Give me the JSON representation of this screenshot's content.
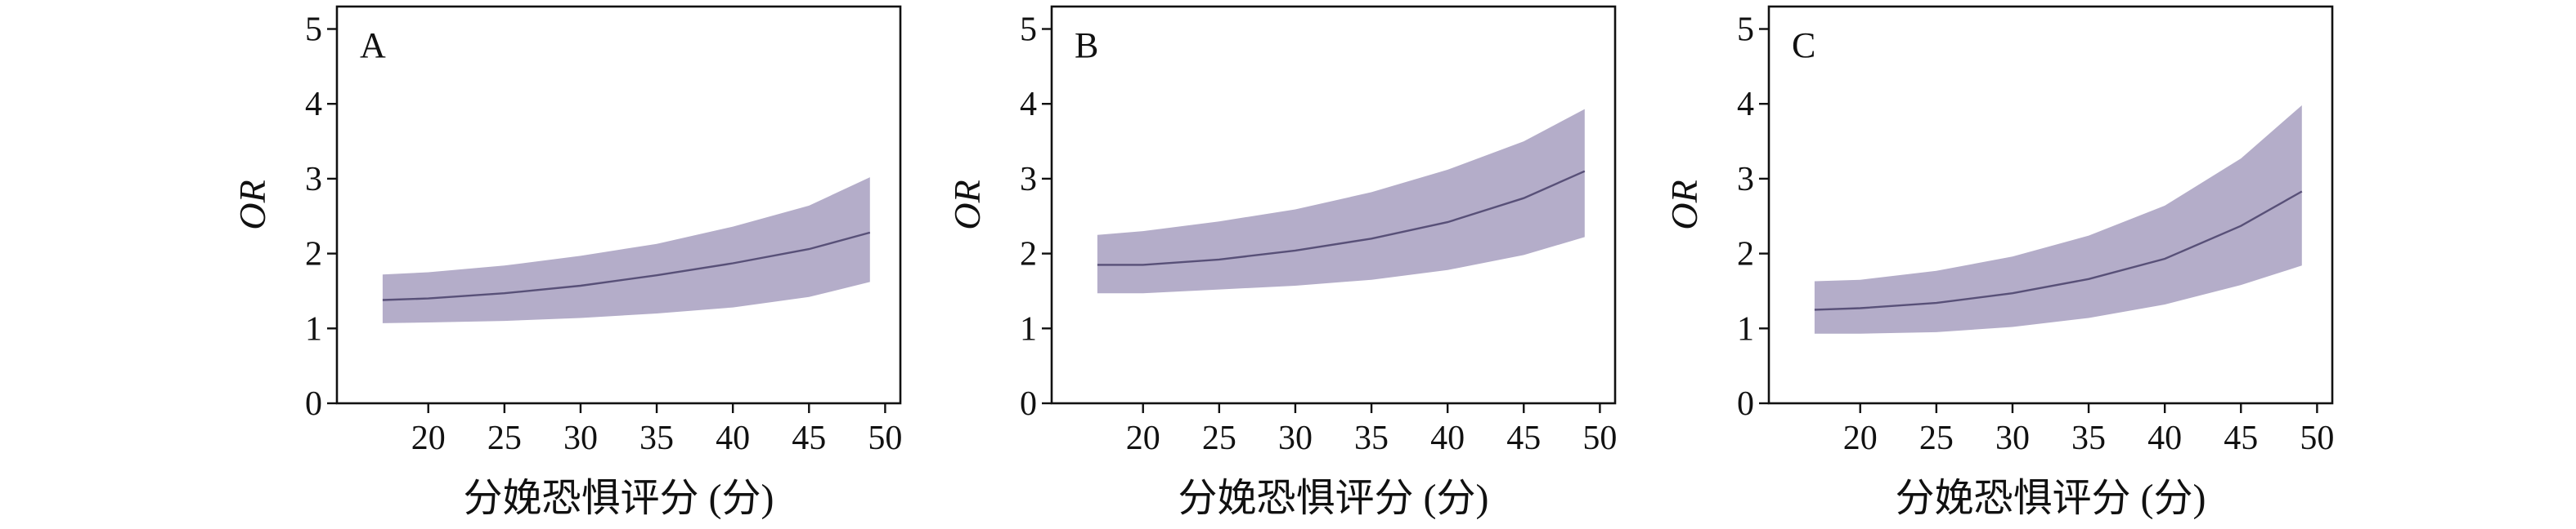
{
  "colors": {
    "band": "#b4adc9",
    "line": "#585078",
    "axis": "#111111",
    "background": "#ffffff"
  },
  "chart_data": [
    {
      "type": "line",
      "panel_label": "A",
      "xlabel": "分娩恐惧评分 (分)",
      "ylabel": "OR",
      "xlim": [
        14,
        51
      ],
      "ylim": [
        0,
        5.3
      ],
      "xticks": [
        "20",
        "25",
        "30",
        "35",
        "40",
        "45",
        "50"
      ],
      "yticks": [
        "0",
        "1",
        "2",
        "3",
        "4",
        "5"
      ],
      "grid": false,
      "series": [
        {
          "x": [
            17,
            20,
            25,
            30,
            35,
            40,
            45,
            49
          ],
          "y": [
            1.38,
            1.4,
            1.47,
            1.57,
            1.71,
            1.87,
            2.06,
            2.28
          ],
          "lower": [
            1.07,
            1.08,
            1.1,
            1.14,
            1.2,
            1.28,
            1.42,
            1.62
          ],
          "upper": [
            1.72,
            1.75,
            1.84,
            1.97,
            2.13,
            2.36,
            2.64,
            3.02
          ]
        }
      ]
    },
    {
      "type": "line",
      "panel_label": "B",
      "xlabel": "分娩恐惧评分 (分)",
      "ylabel": "OR",
      "xlim": [
        14,
        51
      ],
      "ylim": [
        0,
        5.3
      ],
      "xticks": [
        "20",
        "25",
        "30",
        "35",
        "40",
        "45",
        "50"
      ],
      "yticks": [
        "0",
        "1",
        "2",
        "3",
        "4",
        "5"
      ],
      "grid": false,
      "series": [
        {
          "x": [
            17,
            20,
            25,
            30,
            35,
            40,
            45,
            49
          ],
          "y": [
            1.85,
            1.85,
            1.92,
            2.04,
            2.2,
            2.42,
            2.74,
            3.1
          ],
          "lower": [
            1.47,
            1.47,
            1.52,
            1.57,
            1.65,
            1.78,
            1.98,
            2.22
          ],
          "upper": [
            2.25,
            2.3,
            2.43,
            2.59,
            2.82,
            3.12,
            3.5,
            3.93
          ]
        }
      ]
    },
    {
      "type": "line",
      "panel_label": "C",
      "xlabel": "分娩恐惧评分 (分)",
      "ylabel": "OR",
      "xlim": [
        14,
        51
      ],
      "ylim": [
        0,
        5.3
      ],
      "xticks": [
        "20",
        "25",
        "30",
        "35",
        "40",
        "45",
        "50"
      ],
      "yticks": [
        "0",
        "1",
        "2",
        "3",
        "4",
        "5"
      ],
      "grid": false,
      "series": [
        {
          "x": [
            17,
            20,
            25,
            30,
            35,
            40,
            45,
            49
          ],
          "y": [
            1.25,
            1.27,
            1.34,
            1.47,
            1.66,
            1.93,
            2.37,
            2.83
          ],
          "lower": [
            0.93,
            0.93,
            0.95,
            1.02,
            1.14,
            1.32,
            1.58,
            1.84
          ],
          "upper": [
            1.63,
            1.65,
            1.77,
            1.96,
            2.24,
            2.64,
            3.27,
            3.98
          ]
        }
      ]
    }
  ]
}
